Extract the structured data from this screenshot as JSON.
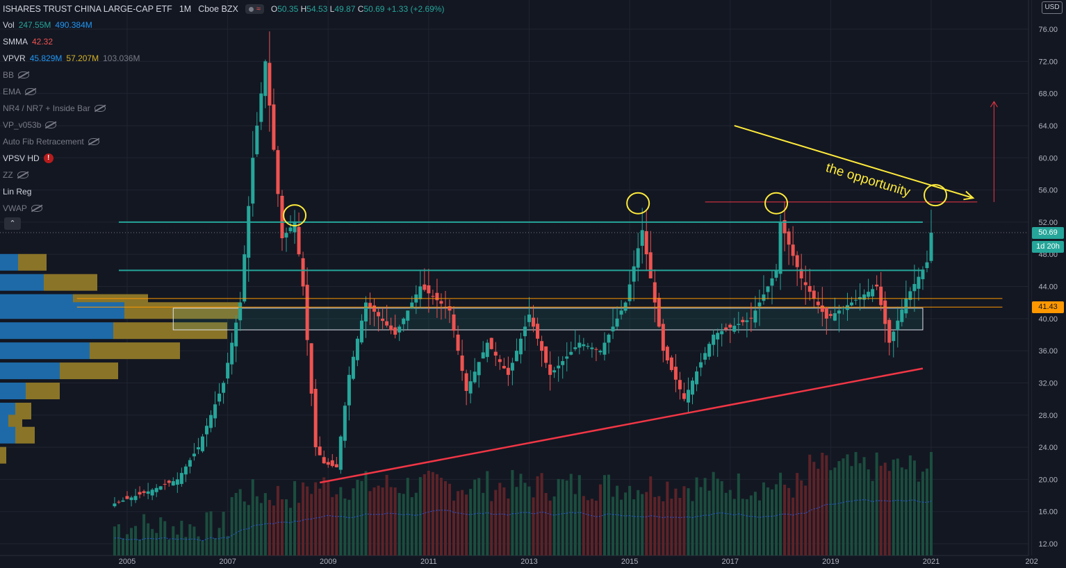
{
  "header": {
    "symbol_title": "ISHARES TRUST CHINA LARGE-CAP ETF",
    "interval": "1M",
    "exchange": "Cboe BZX",
    "ohlc": {
      "o_label": "O",
      "o": "50.35",
      "h_label": "H",
      "h": "54.53",
      "l_label": "L",
      "l": "49.87",
      "c_label": "C",
      "c": "50.69",
      "change": "+1.33 (+2.69%)"
    }
  },
  "indicators": [
    {
      "name": "Vol",
      "values": [
        "247.55M",
        "490.384M"
      ],
      "colors": [
        "green",
        "blue"
      ],
      "hidden": false
    },
    {
      "name": "SMMA",
      "values": [
        "42.32"
      ],
      "colors": [
        "red"
      ],
      "hidden": false
    },
    {
      "name": "VPVR",
      "values": [
        "45.829M",
        "57.207M",
        "103.036M"
      ],
      "colors": [
        "blue",
        "yellow",
        "gray"
      ],
      "hidden": false
    },
    {
      "name": "BB",
      "values": [],
      "colors": [],
      "hidden": true
    },
    {
      "name": "EMA",
      "values": [],
      "colors": [],
      "hidden": true
    },
    {
      "name": "NR4 / NR7 + Inside Bar",
      "values": [],
      "colors": [],
      "hidden": true
    },
    {
      "name": "VP_v053b",
      "values": [],
      "colors": [],
      "hidden": true
    },
    {
      "name": "Auto Fib Retracement",
      "values": [],
      "colors": [],
      "hidden": true
    },
    {
      "name": "VPSV HD",
      "values": [],
      "colors": [],
      "hidden": false,
      "warning": "!"
    },
    {
      "name": "ZZ",
      "values": [],
      "colors": [],
      "hidden": true
    },
    {
      "name": "Lin Reg",
      "values": [],
      "colors": [],
      "hidden": false
    },
    {
      "name": "VWAP",
      "values": [],
      "colors": [],
      "hidden": true
    }
  ],
  "collapse_glyph": "⌃",
  "currency": "USD",
  "price_tags": {
    "last": "50.69",
    "countdown": "1d 20h",
    "smma": "41.43"
  },
  "annotation": {
    "text": "the opportunity"
  },
  "colors": {
    "up": "#26a69a",
    "down": "#ef5350",
    "background": "#131722",
    "grid": "#1f2430",
    "annotation": "#ffeb3b",
    "trendline": "#f23645",
    "resistance": "#26a69a",
    "smma": "#ff9800"
  },
  "chart_data": {
    "type": "candlestick",
    "ylim": [
      11,
      78
    ],
    "y_axis_ticks": [
      "76.00",
      "72.00",
      "68.00",
      "64.00",
      "60.00",
      "56.00",
      "52.00",
      "48.00",
      "44.00",
      "40.00",
      "36.00",
      "32.00",
      "28.00",
      "24.00",
      "20.00",
      "16.00",
      "12.00"
    ],
    "x_axis_ticks": [
      "2005",
      "2007",
      "2009",
      "2011",
      "2013",
      "2015",
      "2017",
      "2019",
      "2021",
      "202"
    ],
    "price_path": [
      [
        "2004-10",
        17.0
      ],
      [
        "2005-06",
        18.5
      ],
      [
        "2006-01",
        20.0
      ],
      [
        "2006-06",
        24.0
      ],
      [
        "2006-12",
        32.0
      ],
      [
        "2007-04",
        42.0
      ],
      [
        "2007-07",
        60.0
      ],
      [
        "2007-10",
        72.0
      ],
      [
        "2008-02",
        50.0
      ],
      [
        "2008-05",
        52.0
      ],
      [
        "2008-07",
        44.0
      ],
      [
        "2008-10",
        24.0
      ],
      [
        "2008-12",
        22.0
      ],
      [
        "2009-03",
        21.5
      ],
      [
        "2009-06",
        33.0
      ],
      [
        "2009-10",
        42.0
      ],
      [
        "2010-05",
        38.0
      ],
      [
        "2010-11",
        44.0
      ],
      [
        "2011-06",
        41.0
      ],
      [
        "2011-10",
        31.0
      ],
      [
        "2012-03",
        37.0
      ],
      [
        "2012-08",
        33.0
      ],
      [
        "2013-01",
        40.5
      ],
      [
        "2013-06",
        33.0
      ],
      [
        "2014-01",
        37.0
      ],
      [
        "2014-06",
        36.0
      ],
      [
        "2014-12",
        42.0
      ],
      [
        "2015-04",
        51.0
      ],
      [
        "2015-09",
        36.0
      ],
      [
        "2016-02",
        30.0
      ],
      [
        "2016-09",
        38.0
      ],
      [
        "2017-06",
        40.0
      ],
      [
        "2017-12",
        46.0
      ],
      [
        "2018-01",
        52.0
      ],
      [
        "2018-06",
        45.0
      ],
      [
        "2018-12",
        40.0
      ],
      [
        "2019-06",
        42.0
      ],
      [
        "2019-12",
        44.0
      ],
      [
        "2020-03",
        37.0
      ],
      [
        "2020-07",
        42.5
      ],
      [
        "2020-12",
        47.0
      ],
      [
        "2021-01",
        50.69
      ]
    ],
    "horizontal_levels": [
      {
        "price": 52.0,
        "from": "2004-11",
        "to": "2020-11",
        "color": "resistance"
      },
      {
        "price": 46.0,
        "from": "2004-11",
        "to": "2020-11",
        "color": "resistance"
      },
      {
        "price": 54.5,
        "from": "2016-07",
        "to": "2021-12",
        "color": "trendline"
      },
      {
        "price": 41.43,
        "from": "2004-01",
        "to": "2022-06",
        "color": "smma"
      },
      {
        "price": 42.5,
        "from": "2004-01",
        "to": "2022-06",
        "color": "smma"
      }
    ],
    "zone_box": {
      "from": "2005-12",
      "to": "2020-11",
      "top": 41.3,
      "bottom": 38.6
    },
    "trendline_support": {
      "from": [
        "2008-11",
        19.6
      ],
      "to": [
        "2020-11",
        33.8
      ]
    },
    "trendline_annotation": {
      "from": [
        "2017-02",
        64.0
      ],
      "to": [
        "2021-11",
        55.0
      ]
    },
    "target_arrow": {
      "x": "2022-04",
      "from_price": 54.5,
      "to_price": 67.0
    },
    "circled_highs": [
      {
        "date": "2008-05",
        "price": 52.5
      },
      {
        "date": "2015-03",
        "price": 54.0
      },
      {
        "date": "2017-12",
        "price": 54.0
      },
      {
        "date": "2021-02",
        "price": 55.0
      }
    ],
    "volume_profile": [
      {
        "price": 47.0,
        "up": 26,
        "down": 41
      },
      {
        "price": 44.5,
        "up": 63,
        "down": 77
      },
      {
        "price": 42.0,
        "up": 105,
        "down": 108
      },
      {
        "price": 41.0,
        "up": 179,
        "down": 168
      },
      {
        "price": 38.5,
        "up": 163,
        "down": 164
      },
      {
        "price": 36.0,
        "up": 129,
        "down": 130
      },
      {
        "price": 33.5,
        "up": 86,
        "down": 84
      },
      {
        "price": 31.0,
        "up": 37,
        "down": 49
      },
      {
        "price": 28.5,
        "up": 22,
        "down": 23
      },
      {
        "price": 27.0,
        "up": 12,
        "down": 20
      },
      {
        "price": 25.5,
        "up": 22,
        "down": 28
      },
      {
        "price": 23.0,
        "up": 0,
        "down": 9
      }
    ]
  }
}
